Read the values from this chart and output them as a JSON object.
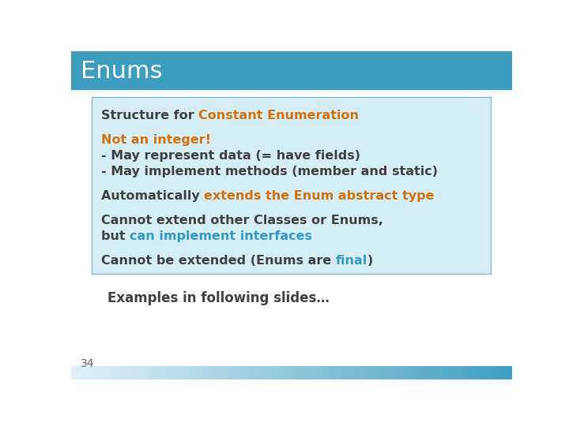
{
  "title": "Enums",
  "title_bg": "#3d9dbf",
  "title_text_color": "#FFFFFF",
  "slide_bg": "#FFFFFF",
  "box_bg": "#d5eef5",
  "box_border": "#88bbcc",
  "dark_text": "#404040",
  "orange_text": "#d4700a",
  "blue_text": "#3399CC",
  "footer_text": "34",
  "examples_text": "Examples in following slides…",
  "lines": [
    {
      "parts": [
        {
          "text": "Structure for ",
          "color": "#404040"
        },
        {
          "text": "Constant Enumeration",
          "color": "#d4700a"
        }
      ]
    },
    {
      "parts": []
    },
    {
      "parts": [
        {
          "text": "Not an integer!",
          "color": "#d4700a"
        }
      ]
    },
    {
      "parts": [
        {
          "text": "- May represent data (= have fields)",
          "color": "#404040"
        }
      ]
    },
    {
      "parts": [
        {
          "text": "- May implement methods (member and static)",
          "color": "#404040"
        }
      ]
    },
    {
      "parts": []
    },
    {
      "parts": [
        {
          "text": "Automatically ",
          "color": "#404040"
        },
        {
          "text": "extends the Enum abstract type",
          "color": "#d4700a"
        }
      ]
    },
    {
      "parts": []
    },
    {
      "parts": [
        {
          "text": "Cannot extend other Classes or Enums,",
          "color": "#404040"
        }
      ]
    },
    {
      "parts": [
        {
          "text": "but ",
          "color": "#404040"
        },
        {
          "text": "can implement interfaces",
          "color": "#3399CC"
        }
      ]
    },
    {
      "parts": []
    },
    {
      "parts": [
        {
          "text": "Cannot be extended (Enums are ",
          "color": "#404040"
        },
        {
          "text": "final",
          "color": "#3399CC"
        },
        {
          "text": ")",
          "color": "#404040"
        }
      ]
    }
  ]
}
